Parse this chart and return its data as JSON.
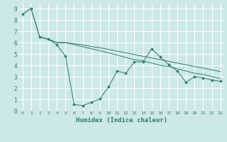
{
  "title": "",
  "xlabel": "Humidex (Indice chaleur)",
  "background_color": "#cce8e8",
  "grid_color": "#ffffff",
  "line_color": "#2e7d6e",
  "xlim": [
    -0.5,
    23.5
  ],
  "ylim": [
    0,
    9.5
  ],
  "xticks": [
    0,
    1,
    2,
    3,
    4,
    5,
    6,
    7,
    8,
    9,
    10,
    11,
    12,
    13,
    14,
    15,
    16,
    17,
    18,
    19,
    20,
    21,
    22,
    23
  ],
  "yticks": [
    0,
    1,
    2,
    3,
    4,
    5,
    6,
    7,
    8,
    9
  ],
  "line1_x": [
    0,
    1,
    2,
    3,
    4,
    5,
    6,
    7,
    8,
    9,
    10,
    11,
    12,
    13,
    14,
    15,
    16,
    17,
    18,
    19,
    20,
    21,
    22,
    23
  ],
  "line1_y": [
    8.5,
    9.0,
    6.5,
    6.3,
    5.8,
    4.8,
    0.55,
    0.45,
    0.75,
    1.05,
    2.1,
    3.5,
    3.3,
    4.3,
    4.3,
    5.45,
    4.75,
    4.05,
    3.5,
    2.5,
    3.0,
    2.9,
    2.7,
    2.6
  ],
  "line2_x": [
    0,
    1,
    2,
    3,
    4,
    5,
    10,
    11,
    12,
    13,
    14,
    15,
    16,
    17,
    18,
    19,
    20,
    21,
    22,
    23
  ],
  "line2_y": [
    8.5,
    9.0,
    6.5,
    6.3,
    6.0,
    6.0,
    5.1,
    4.9,
    4.7,
    4.5,
    4.4,
    4.2,
    4.0,
    3.9,
    3.7,
    3.5,
    3.3,
    3.2,
    3.0,
    2.85
  ],
  "line3_x": [
    2,
    3,
    4,
    5,
    6,
    7,
    8,
    9,
    10,
    11,
    12,
    13,
    14,
    15,
    16,
    17,
    18,
    19,
    20,
    21,
    22,
    23
  ],
  "line3_y": [
    6.5,
    6.3,
    6.0,
    6.0,
    5.9,
    5.8,
    5.65,
    5.55,
    5.4,
    5.25,
    5.1,
    4.95,
    4.8,
    4.65,
    4.5,
    4.35,
    4.2,
    4.05,
    3.9,
    3.75,
    3.6,
    3.45
  ]
}
